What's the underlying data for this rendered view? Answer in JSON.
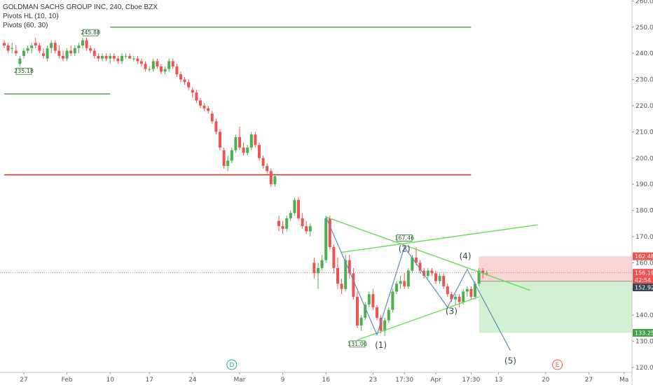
{
  "legend": {
    "title": "GOLDMAN SACHS GROUP INC, 240, Cboe BZX",
    "line2": "Pivots HL (10, 10)",
    "line3": "Pivots (60, 30)"
  },
  "colors": {
    "up": "#26a69a",
    "up_body": "#4caf50",
    "down": "#ef5350",
    "pivot_green": "#2e7d32",
    "pivot_red": "#e53935",
    "triangle": "#66dd55",
    "wave": "#5b8fb9",
    "stop_zone": "#f8c9c9",
    "target_zone": "#c8ecc8"
  },
  "chart_data": {
    "type": "candlestick",
    "ylim": [
      120,
      262
    ],
    "y_ticks": [
      120,
      130,
      140,
      150,
      160,
      170,
      180,
      190,
      200,
      210,
      220,
      230,
      240,
      250,
      260
    ],
    "y_tick_labels": [
      "120.00",
      "130.00",
      "140.00",
      "150.00",
      "160.00",
      "170.00",
      "180.00",
      "190.00",
      "200.00",
      "210.00",
      "220.00",
      "230.00",
      "240.00",
      "250.00",
      "260.00"
    ],
    "x_ticks": [
      {
        "i": 5,
        "label": "27"
      },
      {
        "i": 16,
        "label": "Feb"
      },
      {
        "i": 27,
        "label": "10"
      },
      {
        "i": 37,
        "label": "17"
      },
      {
        "i": 48,
        "label": "24"
      },
      {
        "i": 60,
        "label": "Mar"
      },
      {
        "i": 71,
        "label": "9"
      },
      {
        "i": 82,
        "label": "16"
      },
      {
        "i": 94,
        "label": "23"
      },
      {
        "i": 102,
        "label": "17:30"
      },
      {
        "i": 110,
        "label": "Apr"
      },
      {
        "i": 119,
        "label": "17:30"
      },
      {
        "i": 126,
        "label": "13"
      },
      {
        "i": 138,
        "label": "20"
      },
      {
        "i": 149,
        "label": "27"
      },
      {
        "i": 158,
        "label": "Ma"
      }
    ],
    "candles": [
      [
        244,
        245,
        242,
        243
      ],
      [
        243,
        244,
        240,
        241
      ],
      [
        242,
        244,
        240,
        242
      ],
      [
        241,
        243,
        239,
        240
      ],
      [
        236,
        239,
        235,
        238
      ],
      [
        239,
        242,
        238,
        241
      ],
      [
        241,
        243,
        240,
        242
      ],
      [
        242,
        244,
        240,
        243
      ],
      [
        244,
        246,
        242,
        243
      ],
      [
        243,
        244,
        240,
        241
      ],
      [
        240,
        242,
        238,
        239
      ],
      [
        238,
        243,
        237,
        242
      ],
      [
        242,
        245,
        240,
        244
      ],
      [
        244,
        245,
        240,
        241
      ],
      [
        241,
        243,
        238,
        239
      ],
      [
        239,
        241,
        237,
        238
      ],
      [
        238,
        242,
        237,
        241
      ],
      [
        241,
        243,
        239,
        240
      ],
      [
        240,
        243,
        239,
        242
      ],
      [
        242,
        244,
        240,
        243
      ],
      [
        243,
        246,
        242,
        245
      ],
      [
        245,
        246,
        241,
        242
      ],
      [
        242,
        243,
        240,
        241
      ],
      [
        241,
        242,
        238,
        239
      ],
      [
        239,
        240,
        237,
        238
      ],
      [
        238,
        240,
        237,
        239
      ],
      [
        239,
        240,
        237,
        238
      ],
      [
        238,
        240,
        236,
        239
      ],
      [
        239,
        240,
        237,
        238
      ],
      [
        238,
        239,
        236,
        237
      ],
      [
        237,
        240,
        236,
        239
      ],
      [
        239,
        240,
        238,
        239
      ],
      [
        239,
        240,
        238,
        238
      ],
      [
        238,
        239,
        237,
        238
      ],
      [
        238,
        239,
        236,
        237
      ],
      [
        237,
        238,
        235,
        236
      ],
      [
        236,
        237,
        233,
        234
      ],
      [
        234,
        235,
        233,
        234
      ],
      [
        234,
        238,
        233,
        237
      ],
      [
        237,
        238,
        234,
        235
      ],
      [
        235,
        236,
        232,
        233
      ],
      [
        233,
        235,
        232,
        234
      ],
      [
        234,
        238,
        233,
        237
      ],
      [
        237,
        238,
        234,
        235
      ],
      [
        235,
        236,
        231,
        232
      ],
      [
        232,
        233,
        229,
        230
      ],
      [
        230,
        231,
        228,
        229
      ],
      [
        229,
        230,
        226,
        227
      ],
      [
        226,
        227,
        223,
        225
      ],
      [
        225,
        226,
        221,
        222
      ],
      [
        222,
        223,
        219,
        220
      ],
      [
        220,
        221,
        218,
        219
      ],
      [
        219,
        220,
        217,
        218
      ],
      [
        217,
        218,
        213,
        214
      ],
      [
        214,
        215,
        209,
        210
      ],
      [
        210,
        211,
        203,
        204
      ],
      [
        203,
        204,
        196,
        197
      ],
      [
        197,
        201,
        195,
        199
      ],
      [
        199,
        204,
        198,
        203
      ],
      [
        203,
        209,
        202,
        208
      ],
      [
        208,
        212,
        203,
        204
      ],
      [
        204,
        206,
        201,
        202
      ],
      [
        202,
        205,
        201,
        204
      ],
      [
        204,
        210,
        203,
        209
      ],
      [
        209,
        210,
        204,
        205
      ],
      [
        205,
        206,
        199,
        200
      ],
      [
        200,
        201,
        196,
        197
      ],
      [
        197,
        198,
        194,
        195
      ],
      [
        195,
        196,
        189,
        190
      ],
      [
        190,
        194,
        189,
        193
      ],
      [
        176,
        178,
        172,
        174
      ],
      [
        174,
        176,
        171,
        173
      ],
      [
        173,
        178,
        172,
        177
      ],
      [
        177,
        180,
        176,
        179
      ],
      [
        179,
        185,
        178,
        184
      ],
      [
        184,
        185,
        176,
        177
      ],
      [
        177,
        179,
        173,
        174
      ],
      [
        174,
        176,
        171,
        172
      ],
      [
        172,
        175,
        170,
        174
      ],
      [
        160,
        162,
        154,
        156
      ],
      [
        156,
        160,
        150,
        158
      ],
      [
        158,
        163,
        157,
        161
      ],
      [
        161,
        178,
        160,
        177
      ],
      [
        177,
        178,
        165,
        166
      ],
      [
        166,
        167,
        156,
        158
      ],
      [
        158,
        162,
        150,
        152
      ],
      [
        152,
        154,
        148,
        150
      ],
      [
        150,
        163,
        149,
        161
      ],
      [
        161,
        163,
        154,
        156
      ],
      [
        156,
        158,
        146,
        147
      ],
      [
        147,
        149,
        135,
        136
      ],
      [
        136,
        140,
        134,
        139
      ],
      [
        139,
        145,
        138,
        144
      ],
      [
        144,
        149,
        143,
        148
      ],
      [
        148,
        150,
        142,
        143
      ],
      [
        143,
        144,
        138,
        139
      ],
      [
        139,
        140,
        133,
        134
      ],
      [
        134,
        139,
        132,
        138
      ],
      [
        138,
        143,
        137,
        142
      ],
      [
        142,
        150,
        141,
        149
      ],
      [
        149,
        153,
        148,
        152
      ],
      [
        152,
        155,
        150,
        153
      ],
      [
        153,
        156,
        150,
        151
      ],
      [
        151,
        158,
        150,
        157
      ],
      [
        157,
        163,
        156,
        162
      ],
      [
        162,
        166,
        159,
        160
      ],
      [
        160,
        161,
        156,
        157
      ],
      [
        157,
        158,
        154,
        155
      ],
      [
        155,
        158,
        154,
        157
      ],
      [
        157,
        158,
        155,
        156
      ],
      [
        156,
        157,
        152,
        153
      ],
      [
        153,
        156,
        152,
        155
      ],
      [
        155,
        156,
        150,
        151
      ],
      [
        151,
        152,
        147,
        148
      ],
      [
        148,
        149,
        145,
        146
      ],
      [
        146,
        148,
        144,
        147
      ],
      [
        147,
        148,
        143,
        145
      ],
      [
        145,
        150,
        144,
        149
      ],
      [
        149,
        151,
        147,
        150
      ],
      [
        150,
        151,
        146,
        147
      ],
      [
        147,
        153,
        146,
        152
      ],
      [
        152,
        158,
        151,
        157
      ],
      [
        157,
        158,
        154,
        156
      ],
      [
        156,
        157,
        155,
        156
      ]
    ],
    "horizontal_levels": [
      {
        "price": 250,
        "i_start": 27,
        "i_end": 119,
        "kind": "pivot_green"
      },
      {
        "price": 224.5,
        "i_start": 0,
        "i_end": 27,
        "kind": "pivot_green"
      },
      {
        "price": 193.6,
        "i_start": 0,
        "i_end": 119,
        "kind": "pivot_red"
      }
    ],
    "pivot_labels": [
      {
        "i": 5,
        "price": 235.18,
        "text": "235.18",
        "pos": "below"
      },
      {
        "i": 22,
        "price": 245.88,
        "text": "245.88",
        "pos": "above"
      },
      {
        "i": 102,
        "price": 167.46,
        "text": "167.46",
        "pos": "above"
      },
      {
        "i": 90,
        "price": 131.0,
        "text": "131.00",
        "pos": "below"
      }
    ],
    "triangle_lines": [
      {
        "i1": 82,
        "p1": 177.5,
        "i2": 134,
        "p2": 149.5
      },
      {
        "i1": 86,
        "p1": 164,
        "i2": 136,
        "p2": 174.5
      },
      {
        "i1": 90,
        "p1": 130.5,
        "i2": 121,
        "p2": 147
      }
    ],
    "wave_path": [
      {
        "i": 82,
        "p": 177.5
      },
      {
        "i": 95,
        "p": 132.5
      },
      {
        "i": 102,
        "p": 166
      },
      {
        "i": 113,
        "p": 143
      },
      {
        "i": 118,
        "p": 157.5
      },
      {
        "i": 129,
        "p": 126.5
      }
    ],
    "wave_labels": [
      {
        "i": 96,
        "p": 127.5,
        "text": "(1)"
      },
      {
        "i": 102,
        "p": 164.2,
        "text": "(2)"
      },
      {
        "i": 114,
        "p": 140.5,
        "text": "(3)"
      },
      {
        "i": 117.5,
        "p": 161.5,
        "text": "(4)"
      },
      {
        "i": 129,
        "p": 121.5,
        "text": "(5)"
      }
    ],
    "trade": {
      "i_start": 121,
      "i_end": 160,
      "stop": 162.48,
      "entry": 152.92,
      "target": 133.25
    },
    "current_price": 156.19,
    "price_tags": [
      {
        "price": 162.48,
        "text": "162.48",
        "color": "#ef5350"
      },
      {
        "price": 156.19,
        "text": "156.19",
        "color": "#ef5350"
      },
      {
        "price": 153.45,
        "text": "42:54",
        "color": "#ef5350"
      },
      {
        "price": 150.6,
        "text": "152.92",
        "color": "#37474f"
      },
      {
        "price": 133.25,
        "text": "133.25",
        "color": "#43a047"
      }
    ],
    "event_markers": [
      {
        "i": 58,
        "text": "D",
        "color": "#26a69a"
      },
      {
        "i": 141,
        "text": "E",
        "color": "#ef5350"
      }
    ]
  }
}
